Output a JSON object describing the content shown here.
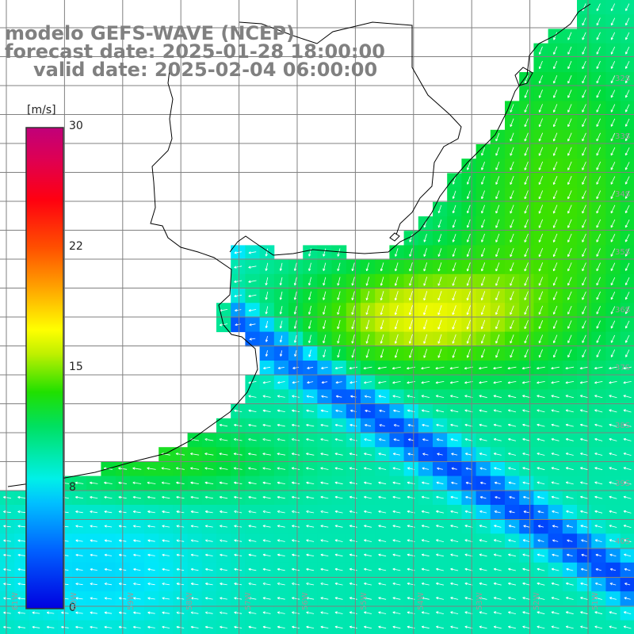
{
  "title": {
    "line1": "modelo GEFS-WAVE (NCEP)",
    "line2": "forecast date: 2025-01-28 18:00:00",
    "line3": "valid date: 2025-02-04 06:00:00"
  },
  "colorbar": {
    "units": "[m/s]",
    "ticks": [
      "30",
      "22",
      "15",
      "8",
      "0"
    ],
    "tick_values": [
      30,
      22,
      15,
      8,
      0
    ],
    "range": [
      0,
      30
    ],
    "colors": [
      "#0000e0",
      "#0050ff",
      "#00a0ff",
      "#00e8ff",
      "#00f0a0",
      "#00e040",
      "#20e000",
      "#a0e800",
      "#ffff00",
      "#ffc000",
      "#ff7000",
      "#ff2000",
      "#e00050",
      "#c0007a"
    ]
  },
  "lat_labels": [
    "32S",
    "33S",
    "34S",
    "35S",
    "36S",
    "37S",
    "38S",
    "39S",
    "40S"
  ],
  "lon_labels": [
    "61W",
    "60W",
    "59W",
    "58W",
    "57W",
    "56W",
    "55W",
    "54W",
    "53W",
    "52W",
    "51W"
  ],
  "map": {
    "variable": "wind speed with wind direction arrows",
    "extent": {
      "lon_min": -61.5,
      "lon_max": -50.8,
      "lat_min": -41.0,
      "lat_max": -30.5
    },
    "land_color": "#ffffff",
    "grid_color": "#808080",
    "coast_color": "#000000",
    "arrow_color": "#ffffff"
  }
}
